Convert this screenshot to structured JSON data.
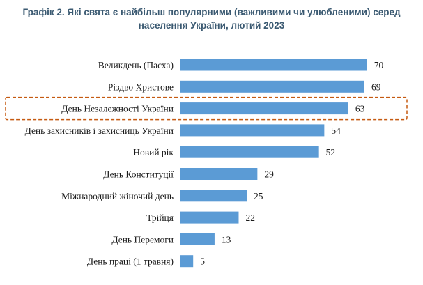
{
  "chart_data": {
    "type": "bar",
    "orientation": "horizontal",
    "title_line1": "Графік 2.  Які свята є найбільш популярними (важливими чи улюбленими) серед",
    "title_line2": "населення України, лютий 2023",
    "xlabel": "",
    "ylabel": "",
    "xlim": [
      0,
      75
    ],
    "grid": false,
    "legend": "none",
    "bar_color": "#5b9bd5",
    "highlight_color": "#c55a11",
    "highlighted_category": "День Незалежності України",
    "categories": [
      "Великдень (Пасха)",
      "Різдво Христове",
      "День Незалежності України",
      "День захисників і захисниць України",
      "Новий рік",
      "День Конституції",
      "Міжнародний жіночий день",
      "Трійця",
      "День Перемоги",
      "День праці (1 травня)"
    ],
    "values": [
      70,
      69,
      63,
      54,
      52,
      29,
      25,
      22,
      13,
      5
    ]
  }
}
